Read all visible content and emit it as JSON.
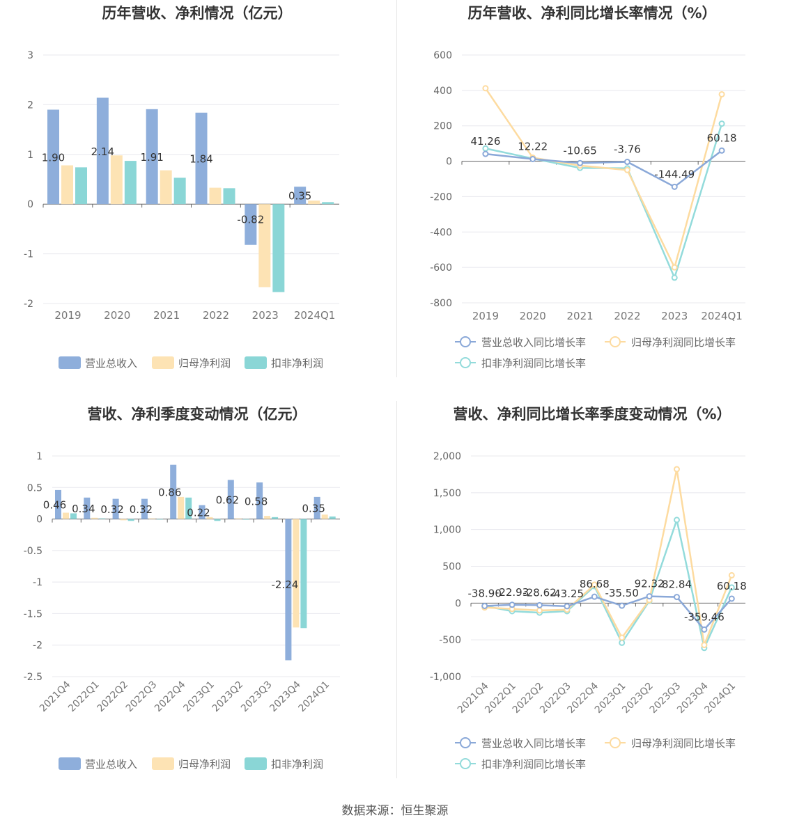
{
  "source_label": "数据来源：恒生聚源",
  "colors": {
    "blue": "#8eaedb",
    "yellow": "#fde3b4",
    "teal": "#8ad6d6",
    "line_blue": "#8aa8d8",
    "line_yellow": "#fddba0",
    "line_teal": "#93dbdb"
  },
  "chart_data": [
    {
      "type": "bar",
      "title": "历年营收、净利情况（亿元）",
      "categories": [
        "2019",
        "2020",
        "2021",
        "2022",
        "2023",
        "2024Q1"
      ],
      "ylim": [
        -2,
        3
      ],
      "yticks": [
        -2,
        -1,
        0,
        1,
        2,
        3
      ],
      "series": [
        {
          "name": "营业总收入",
          "values": [
            1.9,
            2.14,
            1.91,
            1.84,
            -0.82,
            0.35
          ]
        },
        {
          "name": "归母净利润",
          "values": [
            0.78,
            0.98,
            0.68,
            0.33,
            -1.67,
            0.07
          ]
        },
        {
          "name": "扣非净利润",
          "values": [
            0.74,
            0.87,
            0.53,
            0.32,
            -1.77,
            0.04
          ]
        }
      ],
      "data_labels": [
        "1.90",
        "2.14",
        "1.91",
        "1.84",
        "-0.82",
        "0.35"
      ],
      "legend_position": "bottom",
      "grid": true
    },
    {
      "type": "line",
      "title": "历年营收、净利同比增长率情况（%）",
      "categories": [
        "2019",
        "2020",
        "2021",
        "2022",
        "2023",
        "2024Q1"
      ],
      "ylim": [
        -800,
        600
      ],
      "yticks": [
        -800,
        -600,
        -400,
        -200,
        0,
        200,
        400,
        600
      ],
      "series": [
        {
          "name": "营业总收入同比增长率",
          "values": [
            41.26,
            12.22,
            -10.65,
            -3.76,
            -144.49,
            60.18
          ]
        },
        {
          "name": "归母净利润同比增长率",
          "values": [
            412,
            20,
            -25,
            -50,
            -600,
            378
          ]
        },
        {
          "name": "扣非净利润同比增长率",
          "values": [
            72,
            15,
            -38,
            -40,
            -658,
            212
          ]
        }
      ],
      "data_labels": [
        "41.26",
        "12.22",
        "-10.65",
        "-3.76",
        "-144.49",
        "60.18"
      ],
      "legend_position": "bottom",
      "grid": true
    },
    {
      "type": "bar",
      "title": "营收、净利季度变动情况（亿元）",
      "categories": [
        "2021Q4",
        "2022Q1",
        "2022Q2",
        "2022Q3",
        "2022Q4",
        "2023Q1",
        "2023Q2",
        "2023Q3",
        "2023Q4",
        "2024Q1"
      ],
      "ylim": [
        -2.5,
        1
      ],
      "yticks": [
        -2.5,
        -2,
        -1.5,
        -1,
        -0.5,
        0,
        0.5,
        1
      ],
      "series": [
        {
          "name": "营业总收入",
          "values": [
            0.46,
            0.34,
            0.32,
            0.32,
            0.86,
            0.22,
            0.62,
            0.58,
            -2.24,
            0.35
          ]
        },
        {
          "name": "归母净利润",
          "values": [
            0.1,
            0.02,
            -0.02,
            0.01,
            0.35,
            0.03,
            0.01,
            0.05,
            -1.72,
            0.07
          ]
        },
        {
          "name": "扣非净利润",
          "values": [
            0.09,
            0.01,
            -0.03,
            0.0,
            0.34,
            -0.03,
            -0.01,
            0.03,
            -1.73,
            0.04
          ]
        }
      ],
      "data_labels": [
        "0.46",
        "0.34",
        "0.32",
        "0.32",
        "0.86",
        "0.22",
        "0.62",
        "0.58",
        "-2.24",
        "0.35"
      ],
      "legend_position": "bottom",
      "grid": true
    },
    {
      "type": "line",
      "title": "营收、净利同比增长率季度变动情况（%）",
      "categories": [
        "2021Q4",
        "2022Q1",
        "2022Q2",
        "2022Q3",
        "2022Q4",
        "2023Q1",
        "2023Q2",
        "2023Q3",
        "2023Q4",
        "2024Q1"
      ],
      "ylim": [
        -1000,
        2000
      ],
      "yticks": [
        -1000,
        -500,
        0,
        500,
        1000,
        1500,
        2000
      ],
      "ytick_labels": [
        "-1,000",
        "-500",
        "0",
        "500",
        "1,000",
        "1,500",
        "2,000"
      ],
      "series": [
        {
          "name": "营业总收入同比增长率",
          "values": [
            -38.9,
            -22.93,
            -28.62,
            -43.25,
            86.68,
            -35.5,
            92.32,
            82.84,
            -359.46,
            60.18
          ]
        },
        {
          "name": "归母净利润同比增长率",
          "values": [
            -60,
            -80,
            -100,
            -90,
            250,
            -470,
            40,
            1820,
            -570,
            378
          ]
        },
        {
          "name": "扣非净利润同比增长率",
          "values": [
            -40,
            -110,
            -130,
            -110,
            230,
            -540,
            30,
            1130,
            -610,
            212
          ]
        }
      ],
      "data_labels": [
        "-38.90",
        "-22.93",
        "-28.62",
        "-43.25",
        "86.68",
        "-35.50",
        "92.32",
        "82.84",
        "-359.46",
        "60.18"
      ],
      "legend_position": "bottom",
      "grid": true
    }
  ]
}
